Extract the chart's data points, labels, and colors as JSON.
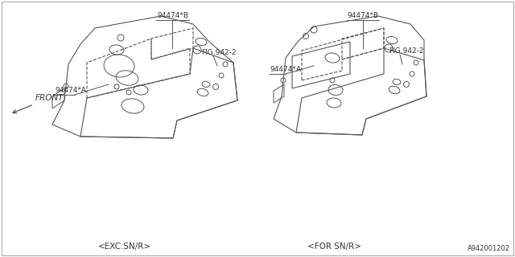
{
  "bg_color": "#ffffff",
  "lc": "#555555",
  "lc_dark": "#333333",
  "label_texts": {
    "94474B_left": "94474*B",
    "94474A_left": "94474*A",
    "94474B_right": "94474*B",
    "94474A_right": "94474*A",
    "fig942_left": "FIG.942-2",
    "fig942_right": "FIG.942-2",
    "exc_label": "<EXC.SN/R>",
    "for_label": "<FOR SN/R>",
    "front_label": "FRONT",
    "part_num": "A942001202"
  },
  "fs": 6.5,
  "fs_label": 7.5,
  "fs_part": 6.0
}
